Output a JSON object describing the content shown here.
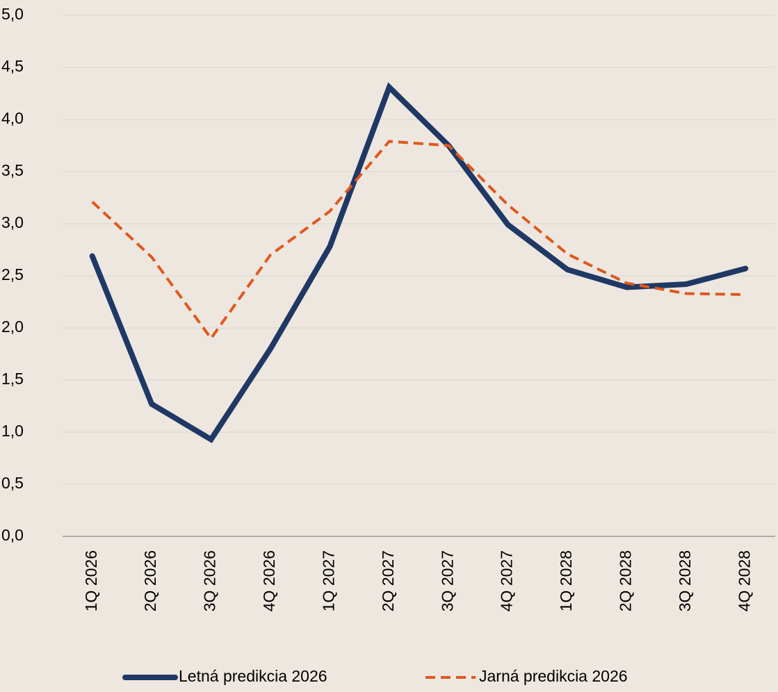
{
  "chart_data": {
    "type": "line",
    "categories": [
      "1Q 2026",
      "2Q 2026",
      "3Q 2026",
      "4Q 2026",
      "1Q 2027",
      "2Q 2027",
      "3Q 2027",
      "4Q 2027",
      "1Q 2028",
      "2Q 2028",
      "3Q 2028",
      "4Q 2028"
    ],
    "series": [
      {
        "name": "Letná predikcia 2026",
        "color": "#1f3864",
        "dash": false,
        "values": [
          2.69,
          1.27,
          0.93,
          1.8,
          2.78,
          4.31,
          3.75,
          2.99,
          2.56,
          2.39,
          2.42,
          2.57
        ]
      },
      {
        "name": "Jarná predikcia 2026",
        "color": "#e0581e",
        "dash": true,
        "values": [
          3.21,
          2.68,
          1.9,
          2.7,
          3.12,
          3.79,
          3.75,
          3.18,
          2.71,
          2.43,
          2.33,
          2.32
        ]
      }
    ],
    "ylim": [
      0,
      5
    ],
    "yticks": [
      {
        "value": 0,
        "label": "0,0"
      },
      {
        "value": 0.5,
        "label": "0,5"
      },
      {
        "value": 1,
        "label": "1,0"
      },
      {
        "value": 1.5,
        "label": "1,5"
      },
      {
        "value": 2,
        "label": "2,0"
      },
      {
        "value": 2.5,
        "label": "2,5"
      },
      {
        "value": 3,
        "label": "3,0"
      },
      {
        "value": 3.5,
        "label": "3,5"
      },
      {
        "value": 4,
        "label": "4,0"
      },
      {
        "value": 4.5,
        "label": "4,5"
      },
      {
        "value": 5,
        "label": "5,0"
      }
    ],
    "grid": true,
    "legend": "bottom"
  }
}
